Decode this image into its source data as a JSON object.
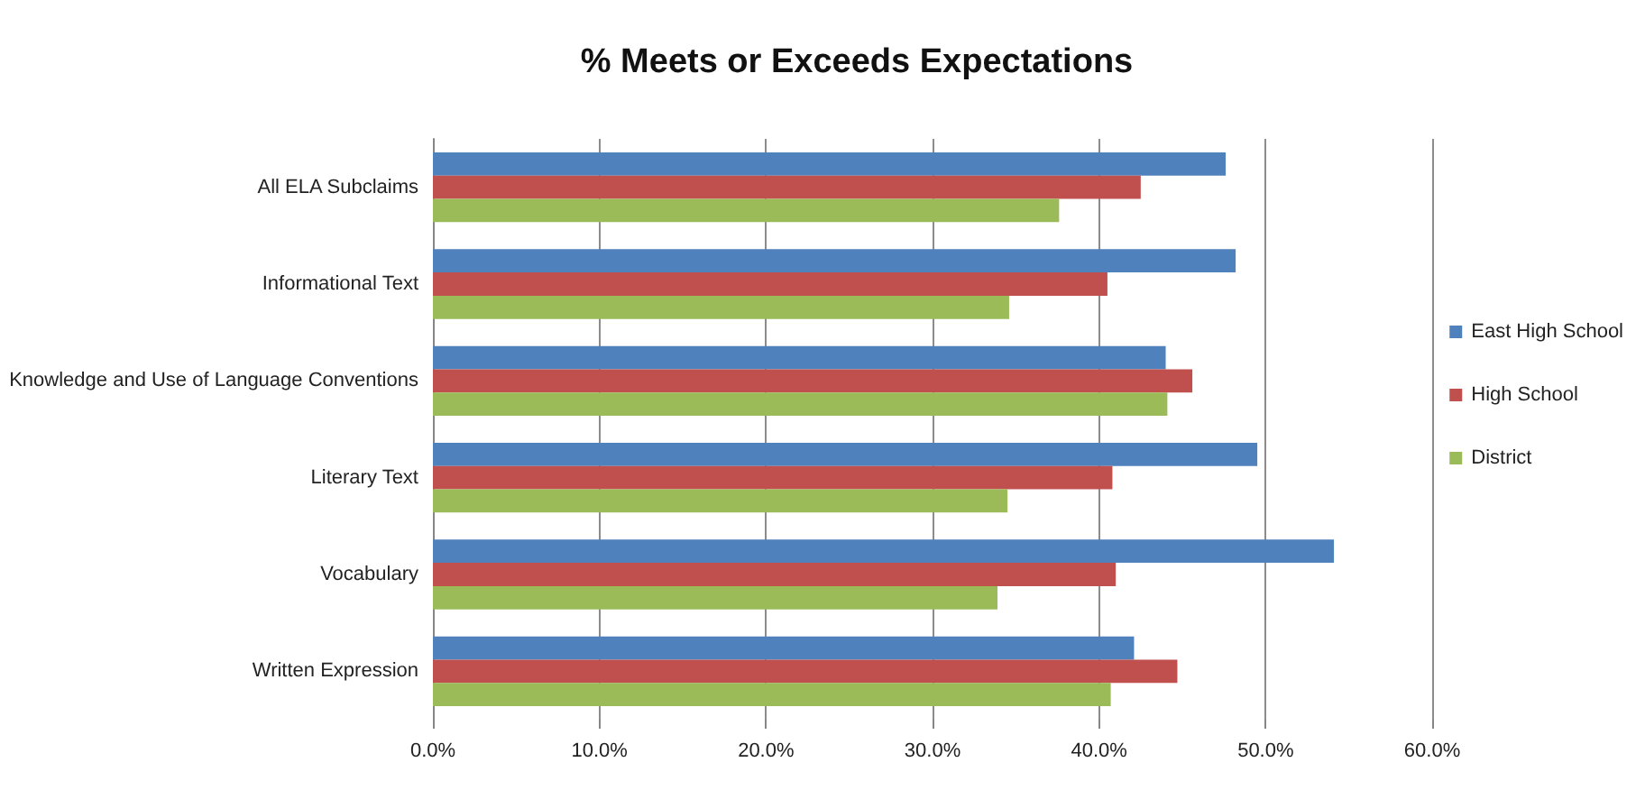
{
  "chart_data": {
    "type": "bar",
    "orientation": "horizontal",
    "title": "% Meets or Exceeds Expectations",
    "categories": [
      "All ELA Subclaims",
      "Informational Text",
      "Knowledge and Use of Language Conventions",
      "Literary Text",
      "Vocabulary",
      "Written Expression"
    ],
    "series": [
      {
        "name": "East High School",
        "color": "#4f81bd",
        "values": [
          47.6,
          48.2,
          44.0,
          49.5,
          54.1,
          42.1
        ]
      },
      {
        "name": "High School",
        "color": "#c0504d",
        "values": [
          42.5,
          40.5,
          45.6,
          40.8,
          41.0,
          44.7
        ]
      },
      {
        "name": "District",
        "color": "#9bbb59",
        "values": [
          37.6,
          34.6,
          44.1,
          34.5,
          33.9,
          40.7
        ]
      }
    ],
    "xlim": [
      0,
      60
    ],
    "xticks": [
      {
        "value": 0,
        "label": "0.0%"
      },
      {
        "value": 10,
        "label": "10.0%"
      },
      {
        "value": 20,
        "label": "20.0%"
      },
      {
        "value": 30,
        "label": "30.0%"
      },
      {
        "value": 40,
        "label": "40.0%"
      },
      {
        "value": 50,
        "label": "50.0%"
      },
      {
        "value": 60,
        "label": "60.0%"
      }
    ],
    "grid": "x",
    "legend": "right"
  }
}
